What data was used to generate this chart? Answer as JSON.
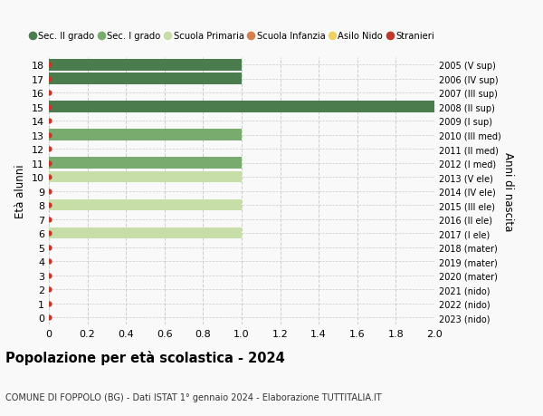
{
  "ages": [
    18,
    17,
    16,
    15,
    14,
    13,
    12,
    11,
    10,
    9,
    8,
    7,
    6,
    5,
    4,
    3,
    2,
    1,
    0
  ],
  "years": [
    "2005 (V sup)",
    "2006 (IV sup)",
    "2007 (III sup)",
    "2008 (II sup)",
    "2009 (I sup)",
    "2010 (III med)",
    "2011 (II med)",
    "2012 (I med)",
    "2013 (V ele)",
    "2014 (IV ele)",
    "2015 (III ele)",
    "2016 (II ele)",
    "2017 (I ele)",
    "2018 (mater)",
    "2019 (mater)",
    "2020 (mater)",
    "2021 (nido)",
    "2022 (nido)",
    "2023 (nido)"
  ],
  "bar_values": [
    1,
    1,
    0,
    2,
    0,
    1,
    0,
    1,
    1,
    0,
    1,
    0,
    1,
    0,
    0,
    0,
    0,
    0,
    0
  ],
  "bar_colors": [
    "#4a7c4e",
    "#4a7c4e",
    "#4a7c4e",
    "#4a7c4e",
    "#4a7c4e",
    "#7aab6e",
    "#7aab6e",
    "#7aab6e",
    "#c8dea8",
    "#c8dea8",
    "#c8dea8",
    "#c8dea8",
    "#c8dea8",
    "#d4804e",
    "#d4804e",
    "#d4804e",
    "#f0d060",
    "#f0d060",
    "#f0d060"
  ],
  "dot_color": "#c0392b",
  "legend_items": [
    {
      "label": "Sec. II grado",
      "color": "#4a7c4e"
    },
    {
      "label": "Sec. I grado",
      "color": "#7aab6e"
    },
    {
      "label": "Scuola Primaria",
      "color": "#c8dea8"
    },
    {
      "label": "Scuola Infanzia",
      "color": "#d4804e"
    },
    {
      "label": "Asilo Nido",
      "color": "#f0d060"
    },
    {
      "label": "Stranieri",
      "color": "#c0392b"
    }
  ],
  "ylabel": "Età alunni",
  "right_label": "Anni di nascita",
  "title": "Popolazione per età scolastica - 2024",
  "subtitle": "COMUNE DI FOPPOLO (BG) - Dati ISTAT 1° gennaio 2024 - Elaborazione TUTTITALIA.IT",
  "xlim": [
    0,
    2.0
  ],
  "xticks": [
    0.0,
    0.2,
    0.4,
    0.6,
    0.8,
    1.0,
    1.2,
    1.4,
    1.6,
    1.8,
    2.0
  ],
  "xtick_labels": [
    "0",
    "0.2",
    "0.4",
    "0.6",
    "0.8",
    "1.0",
    "1.2",
    "1.4",
    "1.6",
    "1.8",
    "2.0"
  ],
  "bg_color": "#f9f9f9",
  "grid_color": "#cccccc",
  "bar_height": 0.82
}
